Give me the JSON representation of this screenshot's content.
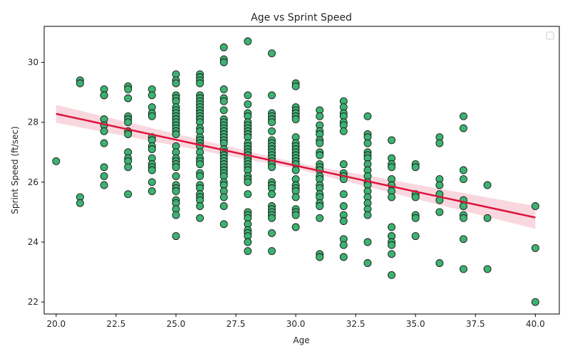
{
  "chart_data": {
    "type": "scatter",
    "title": "Age vs Sprint Speed",
    "xlabel": "Age",
    "ylabel": "Sprint Speed (ft/sec)",
    "xlim": [
      19.5,
      41.0
    ],
    "ylim": [
      21.6,
      31.2
    ],
    "xticks": [
      20.0,
      22.5,
      25.0,
      27.5,
      30.0,
      32.5,
      35.0,
      37.5,
      40.0
    ],
    "xtick_labels": [
      "20.0",
      "22.5",
      "25.0",
      "27.5",
      "30.0",
      "32.5",
      "35.0",
      "37.5",
      "40.0"
    ],
    "yticks": [
      22,
      24,
      26,
      28,
      30
    ],
    "ytick_labels": [
      "22",
      "24",
      "26",
      "28",
      "30"
    ],
    "grid": false,
    "legend": "top-right, empty",
    "colors": {
      "points": "#3cb371",
      "point_edge": "#1a1a1a",
      "fit_line": "#dc143c",
      "confidence_band": "#f4b6c2"
    },
    "trend_line": {
      "x": [
        20.0,
        40.0
      ],
      "y": [
        28.28,
        24.82
      ]
    },
    "confidence_band": {
      "x": [
        20.0,
        30.0,
        40.0
      ],
      "upper": [
        28.58,
        26.65,
        25.2
      ],
      "lower": [
        27.98,
        26.45,
        24.44
      ]
    },
    "points": [
      [
        20,
        26.7
      ],
      [
        21,
        29.4
      ],
      [
        21,
        29.3
      ],
      [
        21,
        25.5
      ],
      [
        21,
        25.3
      ],
      [
        22,
        29.1
      ],
      [
        22,
        28.9
      ],
      [
        22,
        28.9
      ],
      [
        22,
        28.1
      ],
      [
        22,
        27.9
      ],
      [
        22,
        27.7
      ],
      [
        22,
        27.3
      ],
      [
        22,
        26.5
      ],
      [
        22,
        26.2
      ],
      [
        22,
        25.9
      ],
      [
        23,
        29.2
      ],
      [
        23,
        29.1
      ],
      [
        23,
        28.8
      ],
      [
        23,
        28.2
      ],
      [
        23,
        28.1
      ],
      [
        23,
        28.0
      ],
      [
        23,
        27.7
      ],
      [
        23,
        27.6
      ],
      [
        23,
        27.0
      ],
      [
        23,
        26.8
      ],
      [
        23,
        26.7
      ],
      [
        23,
        26.5
      ],
      [
        23,
        25.6
      ],
      [
        24,
        29.1
      ],
      [
        24,
        28.9
      ],
      [
        24,
        28.5
      ],
      [
        24,
        28.3
      ],
      [
        24,
        28.2
      ],
      [
        24,
        27.5
      ],
      [
        24,
        27.4
      ],
      [
        24,
        27.2
      ],
      [
        24,
        27.1
      ],
      [
        24,
        26.8
      ],
      [
        24,
        26.6
      ],
      [
        24,
        26.5
      ],
      [
        24,
        26.4
      ],
      [
        24,
        26.0
      ],
      [
        24,
        25.7
      ],
      [
        25,
        29.6
      ],
      [
        25,
        29.4
      ],
      [
        25,
        29.3
      ],
      [
        25,
        28.9
      ],
      [
        25,
        28.8
      ],
      [
        25,
        28.7
      ],
      [
        25,
        28.5
      ],
      [
        25,
        28.4
      ],
      [
        25,
        28.3
      ],
      [
        25,
        28.2
      ],
      [
        25,
        28.1
      ],
      [
        25,
        28.0
      ],
      [
        25,
        27.9
      ],
      [
        25,
        27.8
      ],
      [
        25,
        27.7
      ],
      [
        25,
        27.6
      ],
      [
        25,
        27.2
      ],
      [
        25,
        27.0
      ],
      [
        25,
        26.8
      ],
      [
        25,
        26.7
      ],
      [
        25,
        26.6
      ],
      [
        25,
        26.5
      ],
      [
        25,
        26.2
      ],
      [
        25,
        25.9
      ],
      [
        25,
        25.8
      ],
      [
        25,
        25.7
      ],
      [
        25,
        25.4
      ],
      [
        25,
        25.3
      ],
      [
        25,
        25.1
      ],
      [
        25,
        24.9
      ],
      [
        25,
        24.2
      ],
      [
        26,
        29.6
      ],
      [
        26,
        29.5
      ],
      [
        26,
        29.4
      ],
      [
        26,
        29.3
      ],
      [
        26,
        28.9
      ],
      [
        26,
        28.8
      ],
      [
        26,
        28.7
      ],
      [
        26,
        28.6
      ],
      [
        26,
        28.5
      ],
      [
        26,
        28.4
      ],
      [
        26,
        28.3
      ],
      [
        26,
        28.2
      ],
      [
        26,
        28.1
      ],
      [
        26,
        28.0
      ],
      [
        26,
        27.8
      ],
      [
        26,
        27.7
      ],
      [
        26,
        27.5
      ],
      [
        26,
        27.4
      ],
      [
        26,
        27.3
      ],
      [
        26,
        27.2
      ],
      [
        26,
        27.0
      ],
      [
        26,
        26.8
      ],
      [
        26,
        26.7
      ],
      [
        26,
        26.6
      ],
      [
        26,
        26.3
      ],
      [
        26,
        26.2
      ],
      [
        26,
        25.9
      ],
      [
        26,
        25.8
      ],
      [
        26,
        25.6
      ],
      [
        26,
        25.5
      ],
      [
        26,
        25.4
      ],
      [
        26,
        25.2
      ],
      [
        26,
        24.8
      ],
      [
        27,
        30.5
      ],
      [
        27,
        30.1
      ],
      [
        27,
        30.0
      ],
      [
        27,
        29.1
      ],
      [
        27,
        28.8
      ],
      [
        27,
        28.7
      ],
      [
        27,
        28.4
      ],
      [
        27,
        28.1
      ],
      [
        27,
        28.0
      ],
      [
        27,
        27.9
      ],
      [
        27,
        27.8
      ],
      [
        27,
        27.7
      ],
      [
        27,
        27.6
      ],
      [
        27,
        27.5
      ],
      [
        27,
        27.4
      ],
      [
        27,
        27.3
      ],
      [
        27,
        27.1
      ],
      [
        27,
        27.0
      ],
      [
        27,
        26.9
      ],
      [
        27,
        26.8
      ],
      [
        27,
        26.7
      ],
      [
        27,
        26.6
      ],
      [
        27,
        26.5
      ],
      [
        27,
        26.4
      ],
      [
        27,
        26.3
      ],
      [
        27,
        26.2
      ],
      [
        27,
        26.0
      ],
      [
        27,
        25.9
      ],
      [
        27,
        25.7
      ],
      [
        27,
        25.5
      ],
      [
        27,
        25.2
      ],
      [
        27,
        24.6
      ],
      [
        28,
        30.7
      ],
      [
        28,
        28.9
      ],
      [
        28,
        28.6
      ],
      [
        28,
        28.3
      ],
      [
        28,
        28.2
      ],
      [
        28,
        28.0
      ],
      [
        28,
        27.9
      ],
      [
        28,
        27.8
      ],
      [
        28,
        27.7
      ],
      [
        28,
        27.6
      ],
      [
        28,
        27.5
      ],
      [
        28,
        27.3
      ],
      [
        28,
        27.2
      ],
      [
        28,
        27.1
      ],
      [
        28,
        27.0
      ],
      [
        28,
        26.9
      ],
      [
        28,
        26.8
      ],
      [
        28,
        26.7
      ],
      [
        28,
        26.6
      ],
      [
        28,
        26.5
      ],
      [
        28,
        26.4
      ],
      [
        28,
        26.2
      ],
      [
        28,
        26.1
      ],
      [
        28,
        26.0
      ],
      [
        28,
        25.6
      ],
      [
        28,
        25.0
      ],
      [
        28,
        24.9
      ],
      [
        28,
        24.8
      ],
      [
        28,
        24.6
      ],
      [
        28,
        24.4
      ],
      [
        28,
        24.3
      ],
      [
        28,
        24.2
      ],
      [
        28,
        24.0
      ],
      [
        28,
        23.7
      ],
      [
        29,
        30.3
      ],
      [
        29,
        28.9
      ],
      [
        29,
        28.3
      ],
      [
        29,
        28.2
      ],
      [
        29,
        28.1
      ],
      [
        29,
        28.0
      ],
      [
        29,
        27.7
      ],
      [
        29,
        27.4
      ],
      [
        29,
        27.3
      ],
      [
        29,
        27.2
      ],
      [
        29,
        27.1
      ],
      [
        29,
        27.0
      ],
      [
        29,
        26.9
      ],
      [
        29,
        26.8
      ],
      [
        29,
        26.7
      ],
      [
        29,
        26.6
      ],
      [
        29,
        26.5
      ],
      [
        29,
        26.0
      ],
      [
        29,
        25.9
      ],
      [
        29,
        25.8
      ],
      [
        29,
        25.6
      ],
      [
        29,
        25.2
      ],
      [
        29,
        25.1
      ],
      [
        29,
        25.0
      ],
      [
        29,
        24.9
      ],
      [
        29,
        24.8
      ],
      [
        29,
        24.3
      ],
      [
        29,
        23.7
      ],
      [
        30,
        29.3
      ],
      [
        30,
        29.2
      ],
      [
        30,
        28.5
      ],
      [
        30,
        28.4
      ],
      [
        30,
        28.3
      ],
      [
        30,
        28.2
      ],
      [
        30,
        28.1
      ],
      [
        30,
        27.5
      ],
      [
        30,
        27.3
      ],
      [
        30,
        27.2
      ],
      [
        30,
        27.1
      ],
      [
        30,
        27.0
      ],
      [
        30,
        26.9
      ],
      [
        30,
        26.8
      ],
      [
        30,
        26.7
      ],
      [
        30,
        26.6
      ],
      [
        30,
        26.4
      ],
      [
        30,
        26.1
      ],
      [
        30,
        25.9
      ],
      [
        30,
        25.8
      ],
      [
        30,
        25.7
      ],
      [
        30,
        25.5
      ],
      [
        30,
        25.1
      ],
      [
        30,
        25.0
      ],
      [
        30,
        24.9
      ],
      [
        30,
        24.5
      ],
      [
        31,
        28.4
      ],
      [
        31,
        28.2
      ],
      [
        31,
        27.9
      ],
      [
        31,
        27.7
      ],
      [
        31,
        27.6
      ],
      [
        31,
        27.4
      ],
      [
        31,
        27.3
      ],
      [
        31,
        27.0
      ],
      [
        31,
        26.9
      ],
      [
        31,
        26.6
      ],
      [
        31,
        26.5
      ],
      [
        31,
        26.4
      ],
      [
        31,
        26.2
      ],
      [
        31,
        26.1
      ],
      [
        31,
        25.9
      ],
      [
        31,
        25.8
      ],
      [
        31,
        25.6
      ],
      [
        31,
        25.5
      ],
      [
        31,
        25.3
      ],
      [
        31,
        25.2
      ],
      [
        31,
        24.8
      ],
      [
        31,
        23.6
      ],
      [
        31,
        23.5
      ],
      [
        32,
        28.7
      ],
      [
        32,
        28.5
      ],
      [
        32,
        28.3
      ],
      [
        32,
        28.2
      ],
      [
        32,
        28.0
      ],
      [
        32,
        27.9
      ],
      [
        32,
        27.7
      ],
      [
        32,
        26.6
      ],
      [
        32,
        26.3
      ],
      [
        32,
        26.2
      ],
      [
        32,
        26.1
      ],
      [
        32,
        25.6
      ],
      [
        32,
        25.2
      ],
      [
        32,
        24.9
      ],
      [
        32,
        24.7
      ],
      [
        32,
        24.1
      ],
      [
        32,
        23.9
      ],
      [
        32,
        23.5
      ],
      [
        33,
        28.2
      ],
      [
        33,
        27.6
      ],
      [
        33,
        27.5
      ],
      [
        33,
        27.3
      ],
      [
        33,
        27.0
      ],
      [
        33,
        26.9
      ],
      [
        33,
        26.8
      ],
      [
        33,
        26.6
      ],
      [
        33,
        26.4
      ],
      [
        33,
        26.2
      ],
      [
        33,
        26.0
      ],
      [
        33,
        25.9
      ],
      [
        33,
        25.7
      ],
      [
        33,
        25.5
      ],
      [
        33,
        25.3
      ],
      [
        33,
        25.1
      ],
      [
        33,
        24.9
      ],
      [
        33,
        24.0
      ],
      [
        33,
        23.3
      ],
      [
        34,
        27.4
      ],
      [
        34,
        26.8
      ],
      [
        34,
        26.6
      ],
      [
        34,
        26.5
      ],
      [
        34,
        26.1
      ],
      [
        34,
        25.9
      ],
      [
        34,
        25.7
      ],
      [
        34,
        25.5
      ],
      [
        34,
        24.5
      ],
      [
        34,
        24.2
      ],
      [
        34,
        24.2
      ],
      [
        34,
        24.0
      ],
      [
        34,
        23.9
      ],
      [
        34,
        23.6
      ],
      [
        34,
        22.9
      ],
      [
        35,
        26.6
      ],
      [
        35,
        26.5
      ],
      [
        35,
        25.6
      ],
      [
        35,
        25.5
      ],
      [
        35,
        24.9
      ],
      [
        35,
        24.8
      ],
      [
        35,
        24.2
      ],
      [
        36,
        27.5
      ],
      [
        36,
        27.3
      ],
      [
        36,
        26.1
      ],
      [
        36,
        25.9
      ],
      [
        36,
        25.6
      ],
      [
        36,
        25.4
      ],
      [
        36,
        25.0
      ],
      [
        36,
        23.3
      ],
      [
        37,
        28.2
      ],
      [
        37,
        27.8
      ],
      [
        37,
        26.4
      ],
      [
        37,
        26.1
      ],
      [
        37,
        25.4
      ],
      [
        37,
        25.2
      ],
      [
        37,
        24.9
      ],
      [
        37,
        24.8
      ],
      [
        37,
        24.1
      ],
      [
        37,
        23.1
      ],
      [
        38,
        25.9
      ],
      [
        38,
        24.8
      ],
      [
        38,
        23.1
      ],
      [
        40,
        25.2
      ],
      [
        40,
        23.8
      ],
      [
        40,
        22.0
      ]
    ]
  }
}
